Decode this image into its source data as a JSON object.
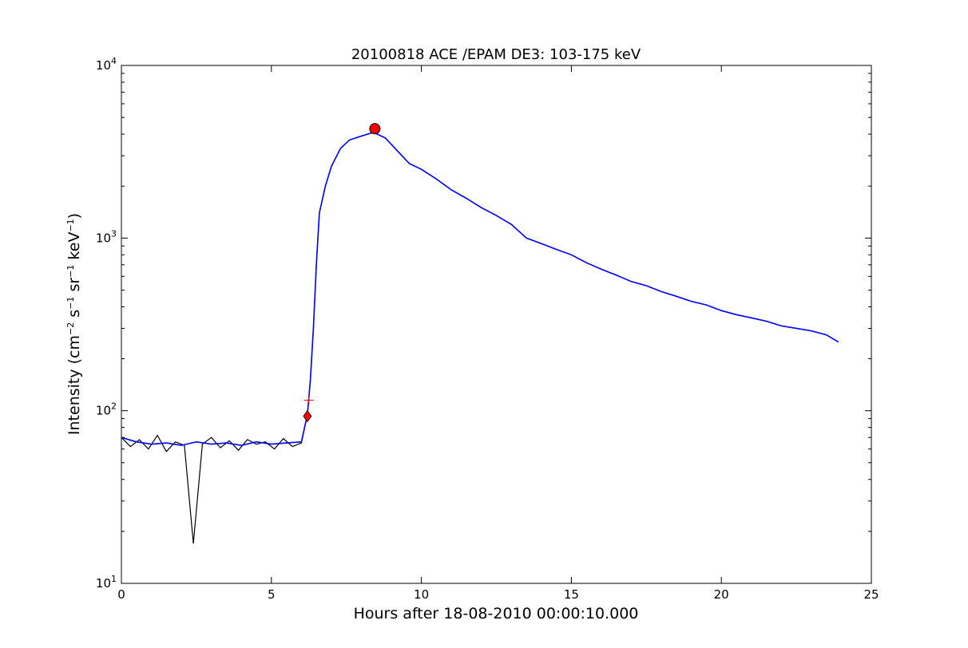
{
  "chart_data": {
    "type": "line",
    "title": "20100818 ACE /EPAM DE3: 103-175 keV",
    "xlabel": "Hours after 18-08-2010 00:00:10.000",
    "ylabel": {
      "prefix": "Intensity (cm",
      "parts": [
        {
          "base": "cm",
          "exp": "−2"
        },
        {
          "base": "s",
          "exp": "−1"
        },
        {
          "base": "sr",
          "exp": "−1"
        },
        {
          "base": "keV",
          "exp": "−1"
        }
      ],
      "suffix": ")"
    },
    "xlim": [
      0,
      25
    ],
    "ylim": [
      10,
      10000
    ],
    "yscale": "log",
    "grid": false,
    "x_ticks": [
      "0",
      "5",
      "10",
      "15",
      "20",
      "25"
    ],
    "y_ticks": [
      {
        "base": "10",
        "exp": "1"
      },
      {
        "base": "10",
        "exp": "2"
      },
      {
        "base": "10",
        "exp": "3"
      },
      {
        "base": "10",
        "exp": "4"
      }
    ],
    "series": [
      {
        "color": "#000000",
        "style": "raw",
        "x": [
          0.0,
          0.3,
          0.6,
          0.9,
          1.2,
          1.5,
          1.8,
          2.1,
          2.4,
          2.7,
          3.0,
          3.3,
          3.6,
          3.9,
          4.2,
          4.5,
          4.8,
          5.1,
          5.4,
          5.7,
          6.0,
          6.2,
          6.3,
          6.4,
          6.5,
          6.6,
          6.8,
          7.0,
          7.3,
          7.6,
          8.0,
          8.4,
          8.8,
          9.2,
          9.6,
          10.0,
          10.5,
          11.0,
          11.5,
          12.0,
          12.5,
          13.0,
          13.5,
          14.0,
          14.5,
          15.0,
          15.5,
          16.0,
          16.5,
          17.0,
          17.5,
          18.0,
          18.5,
          19.0,
          19.5,
          20.0,
          20.5,
          21.0,
          21.5,
          22.0,
          22.5,
          23.0,
          23.5,
          23.9
        ],
        "y": [
          70,
          62,
          68,
          60,
          72,
          58,
          66,
          63,
          17,
          64,
          70,
          61,
          67,
          59,
          68,
          64,
          66,
          60,
          69,
          62,
          65,
          95,
          150,
          300,
          700,
          1400,
          2000,
          2600,
          3300,
          3700,
          3900,
          4100,
          3800,
          3200,
          2700,
          2500,
          2200,
          1900,
          1700,
          1500,
          1350,
          1200,
          1000,
          930,
          860,
          800,
          720,
          660,
          610,
          560,
          530,
          490,
          460,
          430,
          410,
          380,
          360,
          345,
          330,
          310,
          300,
          290,
          275,
          250
        ]
      },
      {
        "color": "#0000ff",
        "style": "smoothed",
        "x": [
          0.0,
          0.5,
          1.0,
          1.5,
          2.0,
          2.5,
          3.0,
          3.5,
          4.0,
          4.5,
          5.0,
          5.5,
          6.0,
          6.2,
          6.3,
          6.4,
          6.5,
          6.6,
          6.8,
          7.0,
          7.3,
          7.6,
          8.0,
          8.4,
          8.8,
          9.2,
          9.6,
          10.0,
          10.5,
          11.0,
          11.5,
          12.0,
          12.5,
          13.0,
          13.5,
          14.0,
          14.5,
          15.0,
          15.5,
          16.0,
          16.5,
          17.0,
          17.5,
          18.0,
          18.5,
          19.0,
          19.5,
          20.0,
          20.5,
          21.0,
          21.5,
          22.0,
          22.5,
          23.0,
          23.5,
          23.9
        ],
        "y": [
          70,
          66,
          64,
          65,
          63,
          66,
          64,
          65,
          63,
          66,
          64,
          65,
          66,
          95,
          150,
          300,
          700,
          1400,
          2000,
          2600,
          3300,
          3700,
          3900,
          4100,
          3800,
          3200,
          2700,
          2500,
          2200,
          1900,
          1700,
          1500,
          1350,
          1200,
          1000,
          930,
          860,
          800,
          720,
          660,
          610,
          560,
          530,
          490,
          460,
          430,
          410,
          380,
          360,
          345,
          330,
          310,
          300,
          290,
          275,
          250
        ]
      }
    ],
    "annotations": [
      {
        "type": "red-circle",
        "x": 8.45,
        "y": 4300
      },
      {
        "type": "red-diamond",
        "x": 6.2,
        "y": 93
      },
      {
        "type": "red-plus",
        "x": 6.25,
        "y": 115
      }
    ]
  }
}
